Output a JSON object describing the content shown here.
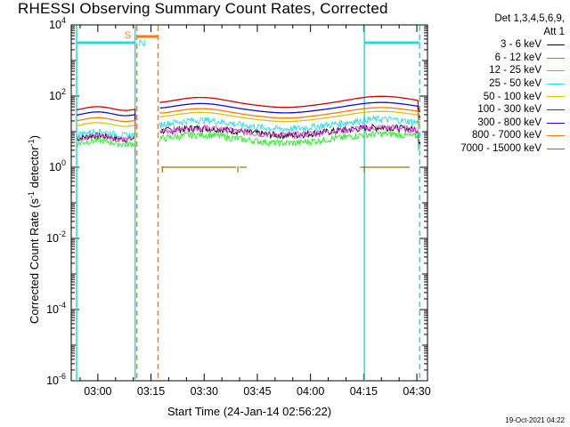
{
  "chart_data": {
    "type": "line",
    "title": "RHESSI Observing Summary Count Rates, Corrected",
    "xlabel": "Start Time (24-Jan-14 02:56:22)",
    "ylabel_main": "Corrected Count Rate (s",
    "ylabel_sup1": "-1",
    "ylabel_mid": " detector",
    "ylabel_sup2": "-1",
    "ylabel_end": ")",
    "x_range_min": [
      -3.5,
      97
    ],
    "xticks": [
      {
        "v": 4,
        "label": "03:00"
      },
      {
        "v": 19,
        "label": "03:15"
      },
      {
        "v": 34,
        "label": "03:30"
      },
      {
        "v": 49,
        "label": "03:45"
      },
      {
        "v": 64,
        "label": "04:00"
      },
      {
        "v": 79,
        "label": "04:15"
      },
      {
        "v": 94,
        "label": "04:30"
      }
    ],
    "y_log_range": [
      -6,
      4
    ],
    "yticks": [
      {
        "exp": 4,
        "base": "10",
        "sup": "4"
      },
      {
        "exp": 2,
        "base": "10",
        "sup": "2"
      },
      {
        "exp": 0,
        "base": "10",
        "sup": "0"
      },
      {
        "exp": -2,
        "base": "10",
        "sup": "-2"
      },
      {
        "exp": -4,
        "base": "10",
        "sup": "-4"
      },
      {
        "exp": -6,
        "base": "10",
        "sup": "-6"
      }
    ],
    "legend_header": [
      "Det 1,3,4,5,6,9,",
      "Att 1"
    ],
    "series": [
      {
        "name": "3 - 6 keV",
        "color": "#000000",
        "before": 7,
        "base": 10,
        "amp": 3
      },
      {
        "name": "6 - 12 keV",
        "color": "#e040e0",
        "before": 7,
        "base": 10,
        "amp": 3
      },
      {
        "name": "12 - 25 keV",
        "color": "#22ee22",
        "before": 5,
        "base": 6,
        "amp": 2.5
      },
      {
        "name": "25 - 50 keV",
        "color": "#22dddd",
        "before": 9,
        "base": 15,
        "amp": 7
      },
      {
        "name": "50 - 100 keV",
        "color": "#e0c000",
        "before": 16,
        "base": 24,
        "amp": 12
      },
      {
        "name": "100 - 300 keV",
        "color": "#d00000",
        "before": 45,
        "base": 60,
        "amp": 35
      },
      {
        "name": "300 - 800 keV",
        "color": "#1010d0",
        "before": 32,
        "base": 42,
        "amp": 22
      },
      {
        "name": "800 - 7000 keV",
        "color": "#ff7a00",
        "before": 22,
        "base": 30,
        "amp": 16
      },
      {
        "name": "7000 - 15000 keV",
        "color": "#8b7a00",
        "before": 1,
        "base": 1,
        "amp": 0
      }
    ],
    "segments": [
      {
        "start": -2,
        "end": 14.5
      },
      {
        "start": 21.5,
        "end": 95
      }
    ],
    "saa_intervals": [
      {
        "start": -2,
        "end": 14.5
      },
      {
        "start": 79.2,
        "end": 94.8
      }
    ],
    "night_intervals": [
      {
        "start": 15.0,
        "end": 21.0
      }
    ],
    "annotations": [
      {
        "text": "S",
        "color": "#ff7a00"
      },
      {
        "text": "N",
        "color": "#22dddd"
      }
    ],
    "saa_color": "#22dddd",
    "night_color": "#ff7a00"
  },
  "timestamp": "19-Oct-2021 04:22"
}
